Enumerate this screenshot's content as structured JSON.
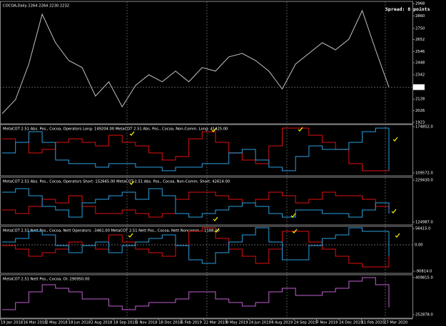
{
  "chart_data": [
    {
      "type": "line",
      "title": "COCOA,Daily  2264 2264 2230 2232",
      "annotation": "Spread: 8 points",
      "ylim": [
        1910,
        2987
      ],
      "yticks": [
        2968,
        2860,
        2750,
        2652,
        2546,
        2448,
        2342,
        2128,
        2026,
        1923
      ],
      "level": {
        "value": 2233,
        "label": "2233"
      },
      "level_highlight": true,
      "series": [
        {
          "color": "#c0c0c0",
          "values": [
            2000,
            2123,
            2436,
            2874,
            2624,
            2467,
            2405,
            2154,
            2280,
            2060,
            2248,
            2342,
            2280,
            2374,
            2280,
            2405,
            2374,
            2499,
            2530,
            2467,
            2374,
            2217,
            2436,
            2530,
            2624,
            2561,
            2655,
            2906,
            2561,
            2233
          ]
        }
      ]
    },
    {
      "type": "step",
      "title": "MetaCOT 2.51 Abs. Pos., Cocoa, Operators Long: 149204.00  MetaCOT 2.51 Abs. Pos., Cocoa, Non-Comm. Long: 41425.00",
      "ylim": [
        105500,
        177900
      ],
      "yticks": [
        {
          "value": 174852,
          "label": "174852.0"
        },
        {
          "value": 109572,
          "label": "109572.0"
        }
      ],
      "series": [
        {
          "color": "#e01010",
          "values": [
            157820,
            152800,
            137740,
            142760,
            152800,
            157820,
            152800,
            147780,
            162840,
            152800,
            147780,
            137740,
            127700,
            132720,
            157820,
            167860,
            152800,
            137740,
            127700,
            122680,
            147780,
            172880,
            172880,
            162840,
            152800,
            142760,
            122680,
            112640,
            112640,
            147780
          ]
        },
        {
          "color": "#2aa0e0",
          "values": [
            137740,
            152800,
            167860,
            152800,
            127700,
            122680,
            122680,
            117660,
            122680,
            122680,
            117660,
            117660,
            112640,
            117660,
            117660,
            122680,
            122680,
            137740,
            142760,
            127700,
            117660,
            112640,
            132720,
            147780,
            142760,
            142760,
            152800,
            167860,
            172880,
            112640
          ]
        }
      ]
    },
    {
      "type": "step",
      "title": "MetaCOT 2.51 Abs. Pos., Cocoa, Operators Short: 152665.00  MetaCOT 2.51 Abs. Pos., Cocoa, Non-Comm. Short: 42614.00",
      "ylim": [
        117907,
        236510
      ],
      "yticks": [
        {
          "value": 229430,
          "label": "229430.0"
        },
        {
          "value": 124987,
          "label": "124987.0"
        }
      ],
      "series": [
        {
          "color": "#e01010",
          "values": [
            155090,
            146240,
            163940,
            181640,
            172790,
            190490,
            163940,
            146240,
            146240,
            155090,
            146240,
            137390,
            146240,
            181640,
            199340,
            199340,
            190490,
            181640,
            172790,
            181640,
            199340,
            190490,
            172790,
            181640,
            199340,
            190490,
            190490,
            181640,
            163940,
            146240
          ]
        },
        {
          "color": "#2aa0e0",
          "values": [
            199340,
            208190,
            190490,
            163940,
            155090,
            137390,
            172790,
            181640,
            190490,
            199340,
            181640,
            208190,
            190490,
            146240,
            137390,
            146240,
            155090,
            163940,
            172790,
            163940,
            146240,
            137390,
            155090,
            155090,
            146240,
            146240,
            137390,
            155090,
            172790,
            146240
          ]
        }
      ]
    },
    {
      "type": "step",
      "title": "MetaCOT 2.51 Nett Pos., Cocoa, Nett Operators: -3461.00  MetaCOT 2.51 Nett Pos., Cocoa, Nett Noncomm.: -1188.00",
      "ylim": [
        -98176,
        63777
      ],
      "yticks": [
        {
          "value": 56415,
          "label": "56415.0"
        },
        {
          "value": -90814,
          "label": "-90814.0"
        }
      ],
      "level": {
        "value": 0,
        "label": "0.00"
      },
      "level_highlight": false,
      "series": [
        {
          "color": "#e01010",
          "values": [
            -2481,
            -14751,
            -39291,
            -27021,
            -14751,
            9789,
            -2481,
            -14751,
            34329,
            9789,
            -14751,
            -27021,
            -39291,
            -2481,
            46599,
            58869,
            22059,
            -14751,
            -39291,
            -63831,
            -14751,
            46599,
            46599,
            9789,
            -14751,
            -39291,
            -63831,
            -76101,
            -76101,
            9789
          ]
        },
        {
          "color": "#2aa0e0",
          "values": [
            9789,
            22059,
            46599,
            34329,
            -2481,
            -27021,
            -2481,
            9789,
            -27021,
            -2481,
            9789,
            22059,
            34329,
            -2481,
            -51561,
            -63831,
            -27021,
            9789,
            34329,
            58869,
            9789,
            -51561,
            -51561,
            -2481,
            22059,
            34329,
            58869,
            46599,
            46599,
            -39291
          ]
        }
      ]
    },
    {
      "type": "step",
      "title": "MetaCOT 2.51 Nett Pos., Cocoa, OI: 290950.00",
      "ylim": [
        237785,
        421887
      ],
      "yticks": [
        {
          "value": 409815,
          "label": "409815.0"
        },
        {
          "value": 252878,
          "label": "252878.0"
        }
      ],
      "series": [
        {
          "color": "#c060d0",
          "values": [
            273999,
            304179,
            349449,
            379629,
            364539,
            349449,
            319269,
            319269,
            289089,
            273999,
            289089,
            304179,
            304179,
            319269,
            349449,
            349449,
            319269,
            304179,
            289089,
            304179,
            349449,
            364539,
            334359,
            334359,
            349449,
            364539,
            394719,
            409809,
            379629,
            283059
          ]
        }
      ]
    }
  ],
  "time_axis": {
    "labels": [
      "19 Jan 2018",
      "16 Mar 2018",
      "2 May 2018",
      "18 Jun 2018",
      "2 Aug 2018",
      "18 Sep 2018",
      "1 Nov 2018",
      "18 Dec 2018",
      "5 Feb 2019",
      "22 Mar 2019",
      "8 May 2019",
      "24 Jun 2019",
      "8 Aug 2019",
      "24 Sep 2019",
      "7 Nov 2019",
      "24 Dec 2019",
      "11 Feb 2020",
      "27 Mar 2020"
    ]
  }
}
